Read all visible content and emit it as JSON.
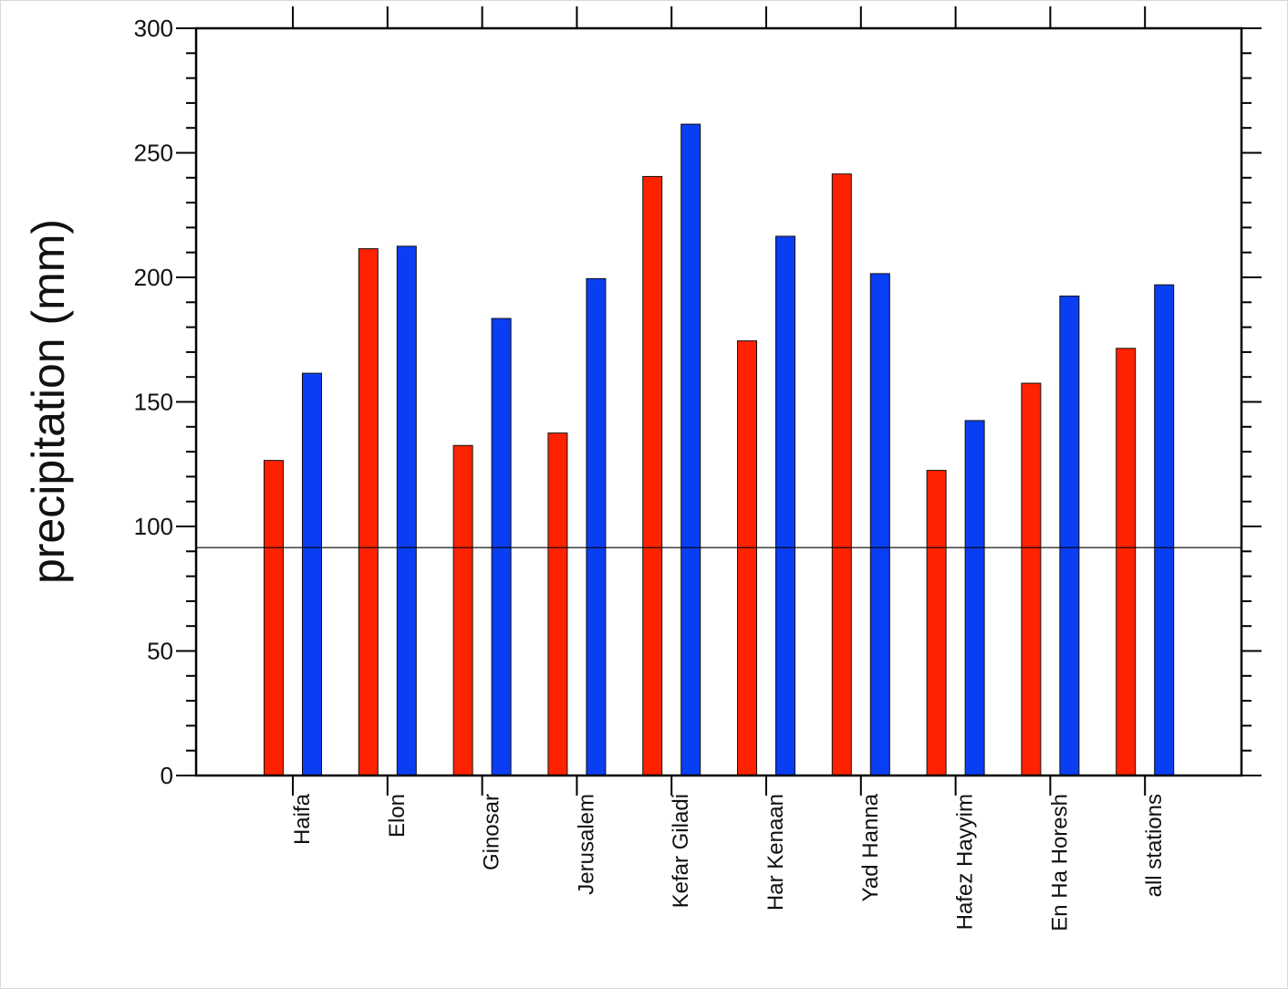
{
  "chart_data": {
    "type": "bar",
    "title": "",
    "xlabel": "",
    "ylabel": "precipitation (mm)",
    "ylim": [
      0,
      300
    ],
    "yticks": [
      "0",
      "50",
      "100",
      "150",
      "200",
      "250",
      "300"
    ],
    "categories": [
      "Haifa",
      "Elon",
      "Ginosar",
      "Jerusalem",
      "Kefar Giladi",
      "Har Kenaan",
      "Yad Hanna",
      "Hafez Hayyim",
      "En Ha Horesh",
      "all stations"
    ],
    "series": [
      {
        "name": "",
        "color": "#ff2200",
        "values": [
          126.5,
          211.5,
          132.5,
          137.5,
          240.5,
          174.5,
          241.5,
          122.5,
          157.5,
          171.5
        ]
      },
      {
        "name": "",
        "color": "#0a3ef2",
        "values": [
          161.5,
          212.5,
          183.5,
          199.5,
          261.5,
          216.5,
          201.5,
          142.5,
          192.5,
          197
        ]
      }
    ],
    "reference_line": 91.5,
    "grid": false,
    "legend": "none"
  }
}
